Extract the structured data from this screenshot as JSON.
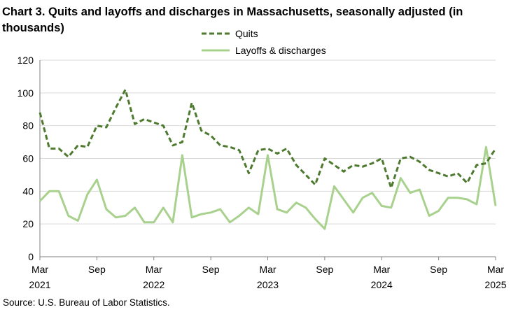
{
  "chart_data": {
    "type": "line",
    "title": "Chart 3. Quits and layoffs and discharges in Massachusetts, seasonally adjusted (in thousands)",
    "xlabel": "",
    "ylabel": "",
    "ylim": [
      0,
      120
    ],
    "yticks": [
      "0",
      "20",
      "40",
      "60",
      "80",
      "100",
      "120"
    ],
    "grid": true,
    "legend_position": "top-center",
    "x_start": "2021-03",
    "x_end": "2025-03",
    "xticks": [
      {
        "month": "Mar",
        "year": "2021"
      },
      {
        "month": "Sep",
        "year": ""
      },
      {
        "month": "Mar",
        "year": "2022"
      },
      {
        "month": "Sep",
        "year": ""
      },
      {
        "month": "Mar",
        "year": "2023"
      },
      {
        "month": "Sep",
        "year": ""
      },
      {
        "month": "Mar",
        "year": "2024"
      },
      {
        "month": "Sep",
        "year": ""
      },
      {
        "month": "Mar",
        "year": "2025"
      }
    ],
    "series": [
      {
        "name": "Quits",
        "color": "#4d7a2e",
        "style": "dashed",
        "values": [
          88,
          66,
          66,
          61,
          68,
          67,
          80,
          79,
          91,
          102,
          81,
          84,
          82,
          80,
          68,
          70,
          94,
          77,
          74,
          68,
          67,
          65,
          51,
          65,
          66,
          63,
          66,
          56,
          50,
          44,
          60,
          56,
          52,
          56,
          55,
          57,
          60,
          42,
          60,
          61,
          58,
          53,
          51,
          49,
          51,
          45,
          56,
          57,
          66
        ]
      },
      {
        "name": "Layoffs & discharges",
        "color": "#a9d18e",
        "style": "solid",
        "values": [
          34,
          40,
          40,
          25,
          22,
          38,
          47,
          29,
          24,
          25,
          30,
          21,
          21,
          30,
          21,
          62,
          24,
          26,
          27,
          29,
          21,
          25,
          30,
          26,
          62,
          29,
          27,
          33,
          30,
          23,
          17,
          43,
          35,
          27,
          36,
          39,
          31,
          30,
          48,
          39,
          41,
          25,
          28,
          36,
          36,
          35,
          32,
          67,
          31
        ]
      }
    ]
  },
  "source": "Source: U.S. Bureau of Labor Statistics."
}
